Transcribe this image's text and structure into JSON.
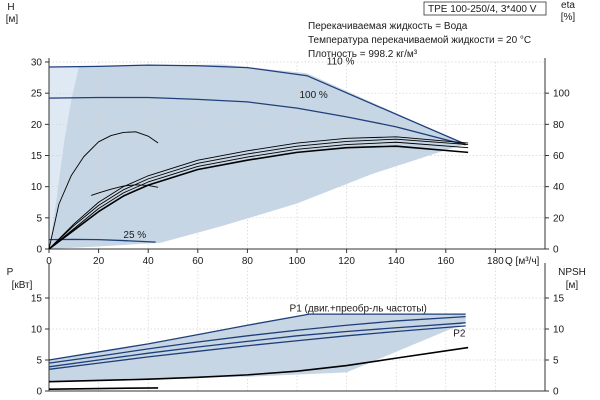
{
  "header": {
    "model": "TPE 100-250/4, 3*400 V",
    "info_lines": [
      "Перекачиваемая жидкость = Вода",
      "Температура перекачиваемой жидкости = 20 °C",
      "Плотность = 998.2 кг/м³"
    ]
  },
  "chart_data": [
    {
      "type": "line",
      "panel": "head",
      "xlabel": "Q [м³/ч]",
      "ylabel_left": [
        "H",
        "[м]"
      ],
      "ylabel_right": [
        "eta",
        "[%]"
      ],
      "x_ticks": [
        0,
        20,
        40,
        60,
        80,
        100,
        120,
        140,
        160,
        180
      ],
      "xlim": [
        0,
        200
      ],
      "ylim_left": [
        0,
        30
      ],
      "y_ticks_left": [
        0,
        5,
        10,
        15,
        20,
        25,
        30
      ],
      "ylim_right": [
        0,
        120
      ],
      "y_ticks_right": [
        0,
        20,
        40,
        60,
        80,
        100
      ],
      "grid": true,
      "operating_area": [
        [
          0,
          0
        ],
        [
          3,
          8
        ],
        [
          6,
          17
        ],
        [
          9,
          24
        ],
        [
          12,
          29.2
        ],
        [
          40,
          29.4
        ],
        [
          70,
          29.6
        ],
        [
          104,
          28.2
        ],
        [
          168,
          16.8
        ],
        [
          158,
          15.6
        ],
        [
          130,
          12
        ],
        [
          100,
          7.3
        ],
        [
          70,
          3.7
        ],
        [
          45,
          1
        ],
        [
          20,
          0.4
        ],
        [
          0,
          0
        ]
      ],
      "series": [
        {
          "name": "110 %",
          "axis": "left",
          "color": "#1f3f7a",
          "x": [
            0,
            20,
            40,
            60,
            80,
            104,
            168
          ],
          "y": [
            29.2,
            29.3,
            29.5,
            29.4,
            29.1,
            27.8,
            16.8
          ]
        },
        {
          "name": "100 %",
          "axis": "left",
          "color": "#1f3f7a",
          "x": [
            0,
            20,
            40,
            60,
            80,
            100,
            120,
            140,
            168
          ],
          "y": [
            24.2,
            24.3,
            24.3,
            24.0,
            23.6,
            22.6,
            21.2,
            19.6,
            16.7
          ]
        },
        {
          "name": "25 %",
          "axis": "left",
          "color": "#1f3f7a",
          "x": [
            0,
            10,
            20,
            30,
            43
          ],
          "y": [
            1.5,
            1.55,
            1.5,
            1.35,
            1.1
          ]
        },
        {
          "name": "",
          "axis": "left",
          "color": "#000000",
          "thin": true,
          "x": [
            0,
            4,
            9,
            14,
            20,
            25,
            30,
            35,
            40,
            44
          ],
          "y": [
            0,
            7.2,
            11.8,
            14.8,
            17.2,
            18.2,
            18.7,
            18.8,
            18.1,
            17.0
          ]
        },
        {
          "name": "",
          "axis": "left",
          "color": "#000000",
          "thin": true,
          "x": [
            17,
            20,
            25,
            30,
            35,
            40,
            44
          ],
          "y": [
            8.6,
            9.0,
            9.6,
            10.1,
            10.3,
            10.2,
            9.9
          ]
        },
        {
          "name": "",
          "axis": "right",
          "color": "#000000",
          "thin": true,
          "x": [
            0,
            10,
            20,
            30,
            40,
            60,
            80,
            100,
            120,
            140,
            169
          ],
          "y": [
            0,
            16,
            30,
            40,
            47,
            57,
            63,
            68,
            71,
            72,
            68
          ]
        },
        {
          "name": "",
          "axis": "right",
          "color": "#000000",
          "thin": true,
          "x": [
            0,
            10,
            20,
            30,
            40,
            60,
            80,
            100,
            120,
            140,
            169
          ],
          "y": [
            0,
            15,
            28,
            38,
            45,
            55,
            61,
            66,
            69,
            70.5,
            67
          ]
        },
        {
          "name": "",
          "axis": "right",
          "color": "#000000",
          "thin": true,
          "x": [
            0,
            10,
            20,
            30,
            40,
            60,
            80,
            100,
            120,
            140,
            169
          ],
          "y": [
            0,
            13,
            26,
            36,
            43,
            53,
            59,
            64,
            67,
            68.5,
            65
          ]
        },
        {
          "name": "",
          "axis": "right",
          "color": "#000000",
          "thin": false,
          "x": [
            0,
            10,
            20,
            30,
            40,
            60,
            80,
            100,
            120,
            140,
            169
          ],
          "y": [
            0,
            12,
            24,
            34,
            41,
            51,
            57,
            62,
            65,
            66,
            62
          ]
        }
      ],
      "labels": [
        {
          "text": "110 %",
          "x": 112,
          "y": 29.6
        },
        {
          "text": "100 %",
          "x": 101,
          "y": 24.2
        },
        {
          "text": "25 %",
          "x": 30,
          "y": 1.8
        }
      ]
    },
    {
      "type": "line",
      "panel": "power",
      "xlabel": "",
      "ylabel_left": [
        "P",
        "[кВт]"
      ],
      "ylabel_right": [
        "NPSH",
        "[м]"
      ],
      "xlim": [
        0,
        200
      ],
      "ylim_left": [
        0,
        20
      ],
      "y_ticks_left": [
        0,
        5,
        10,
        15
      ],
      "ylim_right": [
        0,
        20
      ],
      "y_ticks_right": [
        0,
        5,
        10,
        15
      ],
      "grid": true,
      "operating_area": [
        [
          0,
          5
        ],
        [
          20,
          6.3
        ],
        [
          60,
          9.1
        ],
        [
          105,
          12.4
        ],
        [
          168,
          12.4
        ],
        [
          168,
          11
        ],
        [
          120,
          3
        ],
        [
          80,
          2.3
        ],
        [
          40,
          2
        ],
        [
          0,
          1.5
        ]
      ],
      "series": [
        {
          "name": "P1 (двиг.+преобр-ль частоты)",
          "axis": "left",
          "color": "#1f3f7a",
          "x": [
            0,
            20,
            40,
            60,
            80,
            105,
            168
          ],
          "y": [
            5.0,
            6.3,
            7.6,
            9.1,
            10.6,
            12.4,
            12.4
          ]
        },
        {
          "name": "",
          "axis": "left",
          "color": "#1f3f7a",
          "x": [
            0,
            20,
            40,
            60,
            80,
            100,
            120,
            140,
            168
          ],
          "y": [
            4.5,
            5.6,
            6.8,
            7.9,
            8.9,
            9.8,
            10.6,
            11.3,
            12.0
          ]
        },
        {
          "name": "P2",
          "axis": "left",
          "color": "#1f3f7a",
          "x": [
            0,
            20,
            40,
            60,
            80,
            100,
            120,
            140,
            168
          ],
          "y": [
            3.9,
            5.0,
            6.1,
            7.1,
            8.0,
            8.9,
            9.6,
            10.2,
            11.0
          ]
        },
        {
          "name": "",
          "axis": "left",
          "color": "#1f3f7a",
          "x": [
            0,
            20,
            40,
            60,
            80,
            100,
            120,
            140,
            168
          ],
          "y": [
            3.5,
            4.5,
            5.5,
            6.4,
            7.3,
            8.1,
            8.9,
            9.6,
            10.5
          ]
        },
        {
          "name": "",
          "axis": "left",
          "color": "#000000",
          "x": [
            0,
            20,
            44
          ],
          "y": [
            0.3,
            0.4,
            0.5
          ]
        },
        {
          "name": "",
          "axis": "right",
          "color": "#000000",
          "thin": false,
          "x": [
            0,
            20,
            40,
            60,
            80,
            100,
            120,
            140,
            169
          ],
          "y": [
            1.5,
            1.7,
            1.9,
            2.2,
            2.6,
            3.2,
            4.1,
            5.3,
            7.0
          ]
        }
      ],
      "labels": [
        {
          "text": "P1 (двиг.+преобр-ль частоты)",
          "x": 97,
          "y": 12.8
        },
        {
          "text": "P2",
          "x": 163,
          "y": 8.8
        }
      ]
    }
  ]
}
